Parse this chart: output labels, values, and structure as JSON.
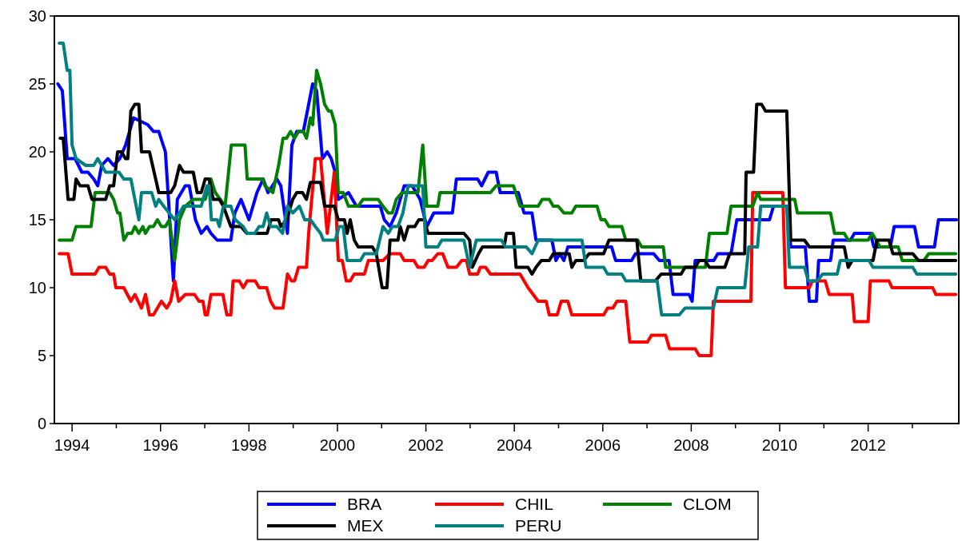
{
  "chart_data": {
    "type": "line",
    "xlim": [
      1993.6,
      2014.05
    ],
    "ylim": [
      0,
      30
    ],
    "yticks": [
      0,
      5,
      10,
      15,
      20,
      25,
      30
    ],
    "xticks": [
      {
        "value": 1994,
        "label": "1994"
      },
      {
        "value": 1995,
        "label": null
      },
      {
        "value": 1996,
        "label": "1996"
      },
      {
        "value": 1997,
        "label": null
      },
      {
        "value": 1998,
        "label": "1998"
      },
      {
        "value": 1999,
        "label": null
      },
      {
        "value": 2000,
        "label": "2000"
      },
      {
        "value": 2001,
        "label": null
      },
      {
        "value": 2002,
        "label": "2002"
      },
      {
        "value": 2003,
        "label": null
      },
      {
        "value": 2004,
        "label": "2004"
      },
      {
        "value": 2005,
        "label": null
      },
      {
        "value": 2006,
        "label": "2006"
      },
      {
        "value": 2007,
        "label": null
      },
      {
        "value": 2008,
        "label": "2008"
      },
      {
        "value": 2009,
        "label": null
      },
      {
        "value": 2010,
        "label": "2010"
      },
      {
        "value": 2011,
        "label": null
      },
      {
        "value": 2012,
        "label": "2012"
      },
      {
        "value": 2013,
        "label": null
      }
    ],
    "grid": false,
    "legend": "bottom",
    "marker": "none",
    "line_style": "solid",
    "series": [
      {
        "name": "BRA",
        "color": "#0000ff",
        "x": [
          1993.68,
          1993.78,
          1993.89,
          1994.07,
          1994.22,
          1994.36,
          1994.49,
          1994.58,
          1994.67,
          1994.81,
          1994.94,
          1995.08,
          1995.21,
          1995.39,
          1995.71,
          1995.84,
          1995.96,
          1996.11,
          1996.18,
          1996.29,
          1996.38,
          1996.56,
          1996.65,
          1996.79,
          1996.92,
          1997.05,
          1997.14,
          1997.28,
          1997.59,
          1997.68,
          1997.82,
          1998.0,
          1998.18,
          1998.32,
          1998.43,
          1998.63,
          1998.72,
          1998.87,
          1998.97,
          1999.08,
          1999.23,
          1999.32,
          1999.44,
          1999.53,
          1999.66,
          1999.77,
          1999.86,
          1999.95,
          2000.02,
          2000.25,
          2000.43,
          2000.97,
          2001.06,
          2001.19,
          2001.33,
          2001.51,
          2001.69,
          2001.87,
          2002.02,
          2002.18,
          2002.6,
          2002.69,
          2003.17,
          2003.26,
          2003.41,
          2003.59,
          2003.68,
          2004.09,
          2004.22,
          2004.4,
          2004.49,
          2004.85,
          2004.94,
          2005.03,
          2005.12,
          2005.21,
          2006.2,
          2006.29,
          2006.65,
          2006.74,
          2007.15,
          2007.28,
          2007.5,
          2007.59,
          2007.95,
          2008.02,
          2008.09,
          2008.51,
          2008.6,
          2008.9,
          2009.03,
          2009.77,
          2009.86,
          2010.16,
          2010.25,
          2010.58,
          2010.67,
          2010.83,
          2010.88,
          2011.15,
          2011.21,
          2011.6,
          2011.69,
          2012.05,
          2012.13,
          2012.5,
          2012.59,
          2013.05,
          2013.14,
          2013.5,
          2013.59,
          2014.0
        ],
        "values": [
          25,
          24.5,
          19.5,
          19.5,
          18.5,
          18.5,
          18,
          17.5,
          19,
          19.5,
          19,
          19.5,
          20.5,
          22.5,
          22,
          21.5,
          21.5,
          20,
          16.5,
          10.5,
          16.5,
          17.5,
          17.5,
          15,
          14,
          14.5,
          14,
          13.5,
          13.5,
          15.5,
          16.5,
          15,
          17,
          18,
          17,
          18,
          17.5,
          14,
          20.5,
          21.5,
          21.5,
          23,
          25,
          24.5,
          19.5,
          20,
          19.5,
          18.5,
          16.5,
          17,
          16,
          16,
          15,
          14.5,
          15.5,
          17.5,
          17.5,
          16.5,
          14.5,
          15.5,
          15.5,
          18,
          18,
          17.5,
          18.5,
          18.5,
          17,
          17,
          15.5,
          15.5,
          13.5,
          13.5,
          12,
          12.5,
          12,
          13,
          13,
          12,
          12,
          12.5,
          12.5,
          12,
          12,
          9.5,
          9.5,
          9,
          12,
          12,
          12.5,
          12.5,
          15,
          15,
          16,
          16,
          13,
          13,
          9,
          9,
          12,
          12,
          13.5,
          13.5,
          14,
          14,
          13,
          13,
          14.5,
          14.5,
          13,
          13,
          15,
          15
        ]
      },
      {
        "name": "CHIL",
        "color": "#ff0000",
        "x": [
          1993.71,
          1993.91,
          1994.0,
          1994.52,
          1994.61,
          1994.76,
          1994.85,
          1994.94,
          1994.99,
          1995.17,
          1995.33,
          1995.42,
          1995.57,
          1995.66,
          1995.75,
          1995.84,
          1996.02,
          1996.14,
          1996.23,
          1996.32,
          1996.41,
          1996.56,
          1996.77,
          1996.87,
          1996.96,
          1997.01,
          1997.06,
          1997.14,
          1997.41,
          1997.5,
          1997.59,
          1997.64,
          1997.78,
          1997.87,
          1997.96,
          1998.14,
          1998.23,
          1998.4,
          1998.49,
          1998.58,
          1998.77,
          1998.87,
          1998.96,
          1999.03,
          1999.12,
          1999.3,
          1999.35,
          1999.5,
          1999.62,
          1999.77,
          1999.93,
          2000.02,
          2000.11,
          2000.2,
          2000.29,
          2000.38,
          2000.61,
          2000.7,
          2001.03,
          2001.19,
          2001.42,
          2001.51,
          2001.73,
          2001.82,
          2001.96,
          2002.05,
          2002.14,
          2002.27,
          2002.38,
          2002.5,
          2002.69,
          2002.81,
          2002.92,
          2002.99,
          2003.17,
          2003.23,
          2003.35,
          2003.46,
          2004.13,
          2004.31,
          2004.54,
          2004.72,
          2004.79,
          2004.97,
          2005.06,
          2005.21,
          2005.3,
          2006.02,
          2006.11,
          2006.23,
          2006.32,
          2006.52,
          2006.61,
          2007.01,
          2007.1,
          2007.42,
          2007.51,
          2008.09,
          2008.18,
          2008.45,
          2008.5,
          2009.35,
          2009.39,
          2010.07,
          2010.13,
          2010.67,
          2010.74,
          2011.03,
          2011.12,
          2011.64,
          2011.69,
          2012.0,
          2012.05,
          2012.47,
          2012.54,
          2013.46,
          2013.53,
          2013.98
        ],
        "values": [
          12.5,
          12.5,
          11,
          11,
          11.5,
          11.5,
          11,
          11,
          10,
          10,
          9,
          9.5,
          8.5,
          9.5,
          8,
          8,
          9,
          8.5,
          9,
          10.5,
          9,
          9.5,
          9.5,
          9,
          9,
          8,
          8,
          9.5,
          9.5,
          8,
          8,
          10.5,
          10.5,
          10,
          10.5,
          10.5,
          10,
          10,
          9,
          8.5,
          8.5,
          11,
          10.5,
          10.5,
          11.5,
          11.5,
          14,
          19.5,
          19.5,
          14,
          18.5,
          12,
          12,
          10.5,
          10.5,
          11,
          11,
          12,
          12,
          12.5,
          12.5,
          12,
          12,
          11.5,
          11.5,
          12,
          12,
          12.5,
          12.5,
          11.5,
          11.5,
          12,
          12,
          11,
          11,
          11.5,
          11.5,
          11,
          11,
          10,
          9,
          9,
          8,
          8,
          9,
          9,
          8,
          8,
          8.5,
          8.5,
          9,
          9,
          6,
          6,
          6.5,
          6.5,
          5.5,
          5.5,
          5,
          5,
          9,
          9,
          17,
          17,
          10,
          10,
          10.5,
          10.5,
          9.5,
          9.5,
          7.5,
          7.5,
          10.5,
          10.5,
          10,
          10,
          9.5,
          9.5
        ]
      },
      {
        "name": "CLOM",
        "color": "#008000",
        "x": [
          1993.71,
          1994.0,
          1994.09,
          1994.43,
          1994.52,
          1994.85,
          1994.94,
          1995.03,
          1995.08,
          1995.17,
          1995.26,
          1995.35,
          1995.42,
          1995.51,
          1995.6,
          1995.66,
          1995.75,
          1995.84,
          1995.93,
          1996.02,
          1996.11,
          1996.2,
          1996.32,
          1996.43,
          1996.56,
          1996.74,
          1997.01,
          1997.14,
          1997.24,
          1997.46,
          1997.6,
          1997.91,
          1997.96,
          1998.31,
          1998.36,
          1998.54,
          1998.67,
          1998.77,
          1998.85,
          1998.94,
          1999.03,
          1999.12,
          1999.23,
          1999.3,
          1999.39,
          1999.44,
          1999.53,
          1999.62,
          1999.71,
          1999.8,
          1999.86,
          1999.95,
          2000.02,
          2000.13,
          2000.25,
          2000.47,
          2000.58,
          2000.92,
          2001.03,
          2001.15,
          2001.24,
          2001.33,
          2001.46,
          2001.73,
          2001.82,
          2001.93,
          2002.02,
          2002.27,
          2002.32,
          2003.46,
          2003.59,
          2003.98,
          2004.13,
          2004.54,
          2004.63,
          2004.79,
          2004.88,
          2004.99,
          2005.12,
          2005.3,
          2005.39,
          2005.87,
          2005.96,
          2006.05,
          2006.14,
          2006.43,
          2006.52,
          2006.79,
          2006.88,
          2007.37,
          2007.42,
          2008.32,
          2008.41,
          2008.81,
          2008.9,
          2009.39,
          2009.5,
          2009.57,
          2010.34,
          2010.4,
          2011.15,
          2011.24,
          2011.46,
          2011.55,
          2012.0,
          2012.09,
          2012.18,
          2012.27,
          2012.68,
          2012.77,
          2013.26,
          2013.37,
          2013.98
        ],
        "values": [
          13.5,
          13.5,
          14.5,
          14.5,
          17,
          17,
          16.5,
          15.5,
          15.5,
          13.5,
          14,
          14,
          14.5,
          14,
          14.5,
          14,
          14.5,
          14.5,
          15,
          14.5,
          14.5,
          15,
          12,
          15,
          16,
          16.5,
          16.5,
          18,
          17,
          16,
          20.5,
          20.5,
          18,
          18,
          17.5,
          17,
          19,
          21,
          21,
          21.5,
          21,
          21.5,
          21.5,
          21,
          22.5,
          22,
          26,
          25,
          23.5,
          23,
          23,
          22,
          17,
          17,
          16,
          16,
          16.5,
          16.5,
          16,
          15.5,
          15.5,
          16.5,
          17,
          17,
          17,
          20.5,
          16,
          16,
          17,
          17,
          17.5,
          17.5,
          16,
          16,
          16.5,
          16.5,
          16,
          16,
          15.5,
          15.5,
          16,
          16,
          15,
          15,
          14.5,
          14.5,
          13.5,
          13.5,
          13,
          13,
          11.5,
          11.5,
          14,
          14,
          16,
          16,
          17,
          16.5,
          16.5,
          15.5,
          15.5,
          14,
          14,
          13.5,
          13.5,
          14,
          13.5,
          13,
          13,
          12,
          12,
          12.5,
          12.5
        ]
      },
      {
        "name": "MEX",
        "color": "#000000",
        "x": [
          1993.73,
          1993.8,
          1993.91,
          1994.04,
          1994.09,
          1994.18,
          1994.36,
          1994.45,
          1994.76,
          1994.85,
          1994.94,
          1995.03,
          1995.12,
          1995.21,
          1995.26,
          1995.33,
          1995.42,
          1995.51,
          1995.57,
          1995.75,
          1995.96,
          1996.23,
          1996.32,
          1996.43,
          1996.52,
          1996.74,
          1996.83,
          1996.92,
          1997.01,
          1997.1,
          1997.19,
          1997.33,
          1997.42,
          1997.59,
          1997.82,
          1997.95,
          1998.41,
          1998.5,
          1998.67,
          1998.72,
          1998.85,
          1998.99,
          1999.08,
          1999.21,
          1999.3,
          1999.39,
          1999.62,
          1999.71,
          1999.93,
          2000.02,
          2000.16,
          2000.22,
          2000.29,
          2000.38,
          2000.47,
          2000.79,
          2000.88,
          2001.01,
          2001.12,
          2001.19,
          2001.37,
          2001.42,
          2001.51,
          2001.6,
          2001.75,
          2001.84,
          2001.96,
          2002.05,
          2002.86,
          2002.99,
          2003.05,
          2003.19,
          2003.28,
          2003.77,
          2003.82,
          2003.98,
          2004.04,
          2004.31,
          2004.4,
          2004.49,
          2004.61,
          2004.79,
          2004.88,
          2005.24,
          2005.3,
          2005.39,
          2005.57,
          2005.69,
          2006.02,
          2006.14,
          2006.77,
          2006.86,
          2007.19,
          2007.32,
          2007.77,
          2007.86,
          2008.09,
          2008.18,
          2008.31,
          2008.41,
          2008.76,
          2008.87,
          2009.21,
          2009.24,
          2009.41,
          2009.48,
          2009.59,
          2009.68,
          2010.16,
          2010.25,
          2010.56,
          2010.67,
          2011.46,
          2011.55,
          2011.64,
          2012.11,
          2012.2,
          2012.47,
          2012.56,
          2013.01,
          2013.14,
          2013.98
        ],
        "values": [
          21,
          21,
          16.5,
          16.5,
          18,
          17.5,
          17.5,
          16.5,
          16.5,
          17.5,
          17.5,
          20,
          20,
          19.5,
          19.5,
          23,
          23.5,
          23.5,
          20,
          20,
          17,
          17,
          17.5,
          19,
          18.5,
          18.5,
          17,
          17,
          18,
          18,
          16.5,
          16.5,
          16,
          14.5,
          14.5,
          14,
          14,
          15,
          15,
          14.5,
          15,
          16.5,
          17,
          17,
          16.5,
          17.75,
          17.75,
          16,
          16,
          15,
          15,
          14,
          15,
          13.5,
          13,
          13,
          12.5,
          10,
          10,
          13.5,
          13.5,
          14.5,
          13.5,
          14.5,
          14.5,
          15,
          15,
          14,
          14,
          13.5,
          11.5,
          12.5,
          13,
          13,
          14,
          14,
          11.5,
          11.5,
          11,
          11.5,
          12,
          12,
          12.5,
          12.5,
          11.5,
          12,
          12,
          12.5,
          12.5,
          13.5,
          13.5,
          10.5,
          10.5,
          11,
          11,
          11.5,
          11.5,
          12,
          12,
          11.5,
          11.5,
          12.5,
          12.5,
          18.5,
          18.5,
          23.5,
          23.5,
          23,
          23,
          13.5,
          13.5,
          13,
          13,
          11.5,
          12,
          12,
          13.5,
          13.5,
          12.5,
          12.5,
          12,
          12
        ]
      },
      {
        "name": "PERU",
        "color": "#008080",
        "x": [
          1993.71,
          1993.8,
          1993.89,
          1993.95,
          1994.0,
          1994.09,
          1994.31,
          1994.49,
          1994.58,
          1994.67,
          1994.76,
          1995.06,
          1995.17,
          1995.33,
          1995.51,
          1995.57,
          1995.8,
          1995.89,
          1995.96,
          1996.07,
          1996.32,
          1996.43,
          1996.52,
          1996.92,
          1997.05,
          1997.1,
          1997.15,
          1997.28,
          1997.33,
          1997.42,
          1997.59,
          1997.69,
          1997.87,
          1997.96,
          1998.13,
          1998.23,
          1998.32,
          1998.4,
          1998.49,
          1998.63,
          1998.76,
          1998.87,
          1998.99,
          1999.14,
          1999.26,
          1999.39,
          1999.5,
          1999.62,
          1999.68,
          1999.95,
          2000.04,
          2000.13,
          2000.22,
          2000.52,
          2000.61,
          2000.88,
          2001.03,
          2001.15,
          2001.24,
          2001.37,
          2001.48,
          2001.6,
          2001.93,
          2002.0,
          2002.27,
          2002.36,
          2002.86,
          2002.99,
          2003.14,
          2003.71,
          2003.8,
          2004.27,
          2004.4,
          2004.54,
          2005.53,
          2005.62,
          2006.02,
          2006.11,
          2006.43,
          2006.52,
          2007.23,
          2007.33,
          2007.73,
          2007.86,
          2008.5,
          2008.6,
          2009.21,
          2009.3,
          2009.5,
          2009.57,
          2010.16,
          2010.22,
          2010.56,
          2010.65,
          2010.85,
          2010.97,
          2011.3,
          2011.37,
          2012.02,
          2012.11,
          2013.01,
          2013.1,
          2013.98
        ],
        "values": [
          28,
          28,
          26,
          26,
          20.5,
          19.5,
          19,
          19,
          19.5,
          19,
          18.5,
          18.5,
          18,
          18,
          15,
          17,
          17,
          16,
          16.5,
          16,
          15,
          15.5,
          16,
          16,
          17.5,
          17.5,
          15,
          15,
          14.5,
          16,
          16,
          15,
          14.5,
          14,
          14,
          14.5,
          14.5,
          15.5,
          14.5,
          14.5,
          14,
          16,
          15.5,
          16,
          15,
          15,
          14.5,
          14,
          13.5,
          13.5,
          14.5,
          14.5,
          12,
          12,
          12.5,
          12.5,
          14.5,
          14,
          14.5,
          14.5,
          15.5,
          17.5,
          17.5,
          13,
          13,
          13.5,
          13.5,
          11.5,
          13.5,
          13.5,
          13,
          13,
          12.5,
          13.5,
          13.5,
          11.5,
          11.5,
          11,
          11,
          10.5,
          10.5,
          8,
          8,
          8.5,
          8.5,
          10,
          10,
          13,
          13,
          16,
          16,
          11.5,
          11.5,
          10.5,
          10.5,
          11,
          11,
          12,
          12,
          11.5,
          11.5,
          11,
          11
        ]
      }
    ]
  }
}
